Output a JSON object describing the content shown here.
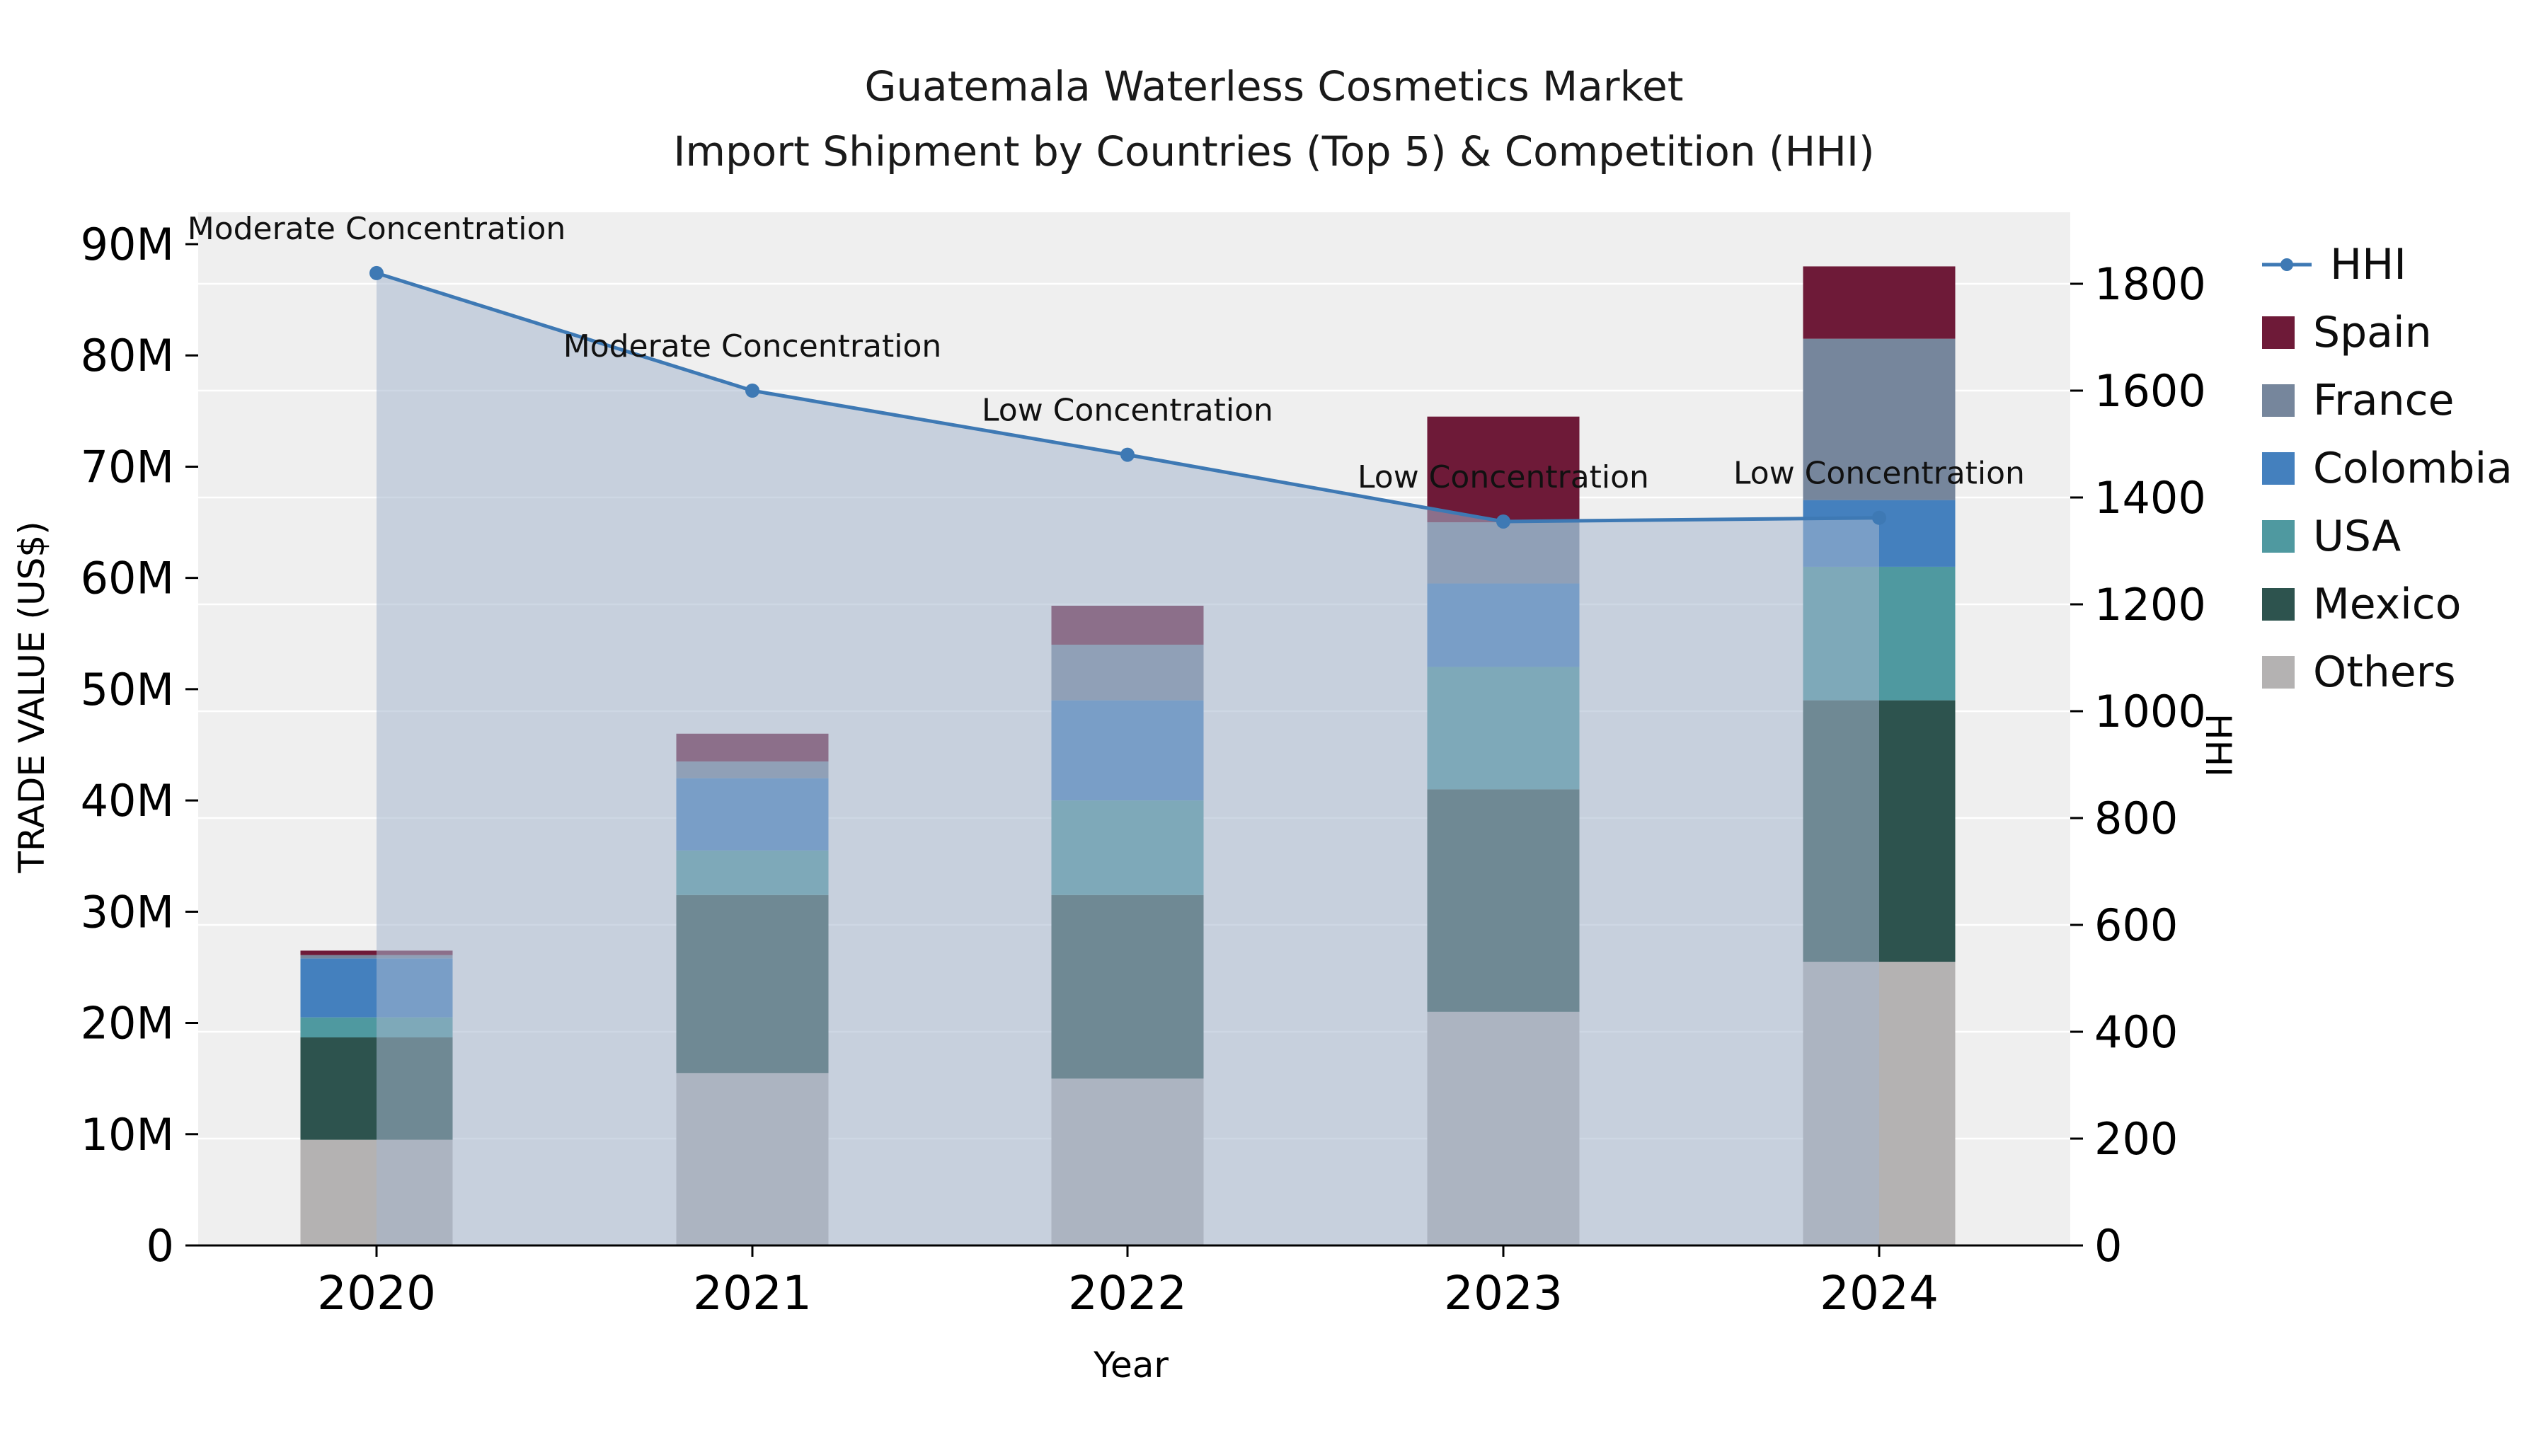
{
  "chart_data": {
    "type": "stacked-bar+line",
    "title": "Guatemala Waterless Cosmetics Market",
    "subtitle": "Import Shipment by Countries (Top 5) & Competition (HHI)",
    "xlabel": "Year",
    "ylabel_left": "TRADE VALUE (US$)",
    "ylabel_right": "HHI",
    "value_unit": "US$ millions",
    "categories": [
      "2020",
      "2021",
      "2022",
      "2023",
      "2024"
    ],
    "series": [
      {
        "name": "Others",
        "color": "#b4b2b2",
        "values": [
          9.5,
          15.5,
          15.0,
          21.0,
          25.5
        ]
      },
      {
        "name": "Mexico",
        "color": "#2d534e",
        "values": [
          9.2,
          16.0,
          16.5,
          20.0,
          23.5
        ]
      },
      {
        "name": "USA",
        "color": "#4f99a0",
        "values": [
          1.8,
          4.0,
          8.5,
          11.0,
          12.0
        ]
      },
      {
        "name": "Colombia",
        "color": "#4480be",
        "values": [
          5.3,
          6.5,
          9.0,
          7.5,
          6.0
        ]
      },
      {
        "name": "France",
        "color": "#76869c",
        "values": [
          0.3,
          1.5,
          5.0,
          5.5,
          14.5
        ]
      },
      {
        "name": "Spain",
        "color": "#6e1a38",
        "values": [
          0.4,
          2.5,
          3.5,
          9.5,
          6.5
        ]
      }
    ],
    "line": {
      "name": "HHI",
      "color": "#3e79b4",
      "fill_color": "#a6b6cd",
      "values": [
        1820,
        1600,
        1480,
        1355,
        1362
      ],
      "annotations": [
        "Moderate Concentration",
        "Moderate Concentration",
        "Low Concentration",
        "Low Concentration",
        "Low Concentration"
      ]
    },
    "axis_left": {
      "ticks": [
        0,
        10,
        20,
        30,
        40,
        50,
        60,
        70,
        80,
        90
      ],
      "tick_labels": [
        "0",
        "10M",
        "20M",
        "30M",
        "40M",
        "50M",
        "60M",
        "70M",
        "80M",
        "90M"
      ]
    },
    "axis_right": {
      "ticks": [
        0,
        200,
        400,
        600,
        800,
        1000,
        1200,
        1400,
        1600,
        1800
      ],
      "tick_labels": [
        "0",
        "200",
        "400",
        "600",
        "800",
        "1000",
        "1200",
        "1400",
        "1600",
        "1800"
      ]
    },
    "legend": [
      "HHI",
      "Spain",
      "France",
      "Colombia",
      "USA",
      "Mexico",
      "Others"
    ]
  }
}
